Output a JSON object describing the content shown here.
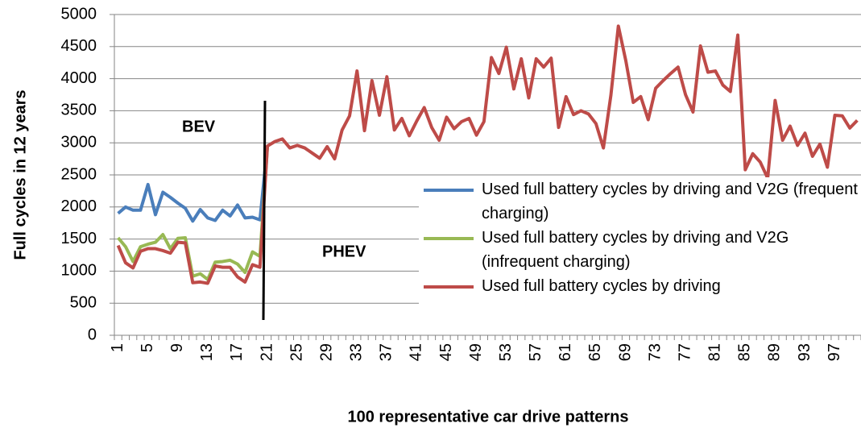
{
  "chart_data": {
    "type": "line",
    "ylabel": "Full cycles in 12 years",
    "xlabel": "100 representative car drive patterns",
    "annotations": [
      "BEV",
      "PHEV"
    ],
    "categories": [
      1,
      null,
      null,
      null,
      5,
      null,
      null,
      null,
      9,
      null,
      null,
      null,
      13,
      null,
      null,
      null,
      17,
      null,
      null,
      null,
      21,
      null,
      null,
      null,
      25,
      null,
      null,
      null,
      29,
      null,
      null,
      null,
      33,
      null,
      null,
      null,
      37,
      null,
      null,
      null,
      41,
      null,
      null,
      null,
      45,
      null,
      null,
      null,
      49,
      null,
      null,
      null,
      53,
      null,
      null,
      null,
      57,
      null,
      null,
      null,
      61,
      null,
      null,
      null,
      65,
      null,
      null,
      null,
      69,
      null,
      null,
      null,
      73,
      null,
      null,
      null,
      77,
      null,
      null,
      null,
      81,
      null,
      null,
      null,
      85,
      null,
      null,
      null,
      89,
      null,
      null,
      null,
      93,
      null,
      null,
      null,
      97,
      null,
      null,
      null
    ],
    "series": [
      {
        "name": "Used full battery cycles by driving and V2G (frequent charging)",
        "color": "#4a7ebb",
        "values": [
          1900,
          2000,
          1950,
          1950,
          2350,
          1880,
          2230,
          2150,
          2060,
          1980,
          1780,
          1960,
          1830,
          1790,
          1950,
          1860,
          2030,
          1830,
          1840,
          1800,
          2950,
          null,
          null,
          null,
          null,
          null,
          null,
          null,
          null,
          null,
          null,
          null,
          null,
          null,
          null,
          null,
          null,
          null,
          null,
          null,
          null,
          null,
          null,
          null,
          null,
          null,
          null,
          null,
          null,
          null,
          null,
          null,
          null,
          null,
          null,
          null,
          null,
          null,
          null,
          null,
          null,
          null,
          null,
          null,
          null,
          null,
          null,
          null,
          null,
          null,
          null,
          null,
          null,
          null,
          null,
          null,
          null,
          null,
          null,
          null,
          null,
          null,
          null,
          null,
          null,
          null,
          null,
          null,
          null,
          null,
          null,
          null,
          null,
          null,
          null,
          null,
          null,
          null,
          null,
          null
        ]
      },
      {
        "name": "Used full battery cycles by driving and V2G (infrequent charging)",
        "color": "#98b954",
        "values": [
          1520,
          1380,
          1150,
          1380,
          1420,
          1450,
          1570,
          1350,
          1510,
          1520,
          920,
          960,
          870,
          1140,
          1150,
          1170,
          1110,
          980,
          1300,
          1230,
          2950,
          null,
          null,
          null,
          null,
          null,
          null,
          null,
          null,
          null,
          null,
          null,
          null,
          null,
          null,
          null,
          null,
          null,
          null,
          null,
          null,
          null,
          null,
          null,
          null,
          null,
          null,
          null,
          null,
          null,
          null,
          null,
          null,
          null,
          null,
          null,
          null,
          null,
          null,
          null,
          null,
          null,
          null,
          null,
          null,
          null,
          null,
          null,
          null,
          null,
          null,
          null,
          null,
          null,
          null,
          null,
          null,
          null,
          null,
          null,
          null,
          null,
          null,
          null,
          null,
          null,
          null,
          null,
          null,
          null,
          null,
          null,
          null,
          null,
          null,
          null,
          null,
          null,
          null,
          null
        ]
      },
      {
        "name": "Used full battery cycles by driving",
        "color": "#be4b48",
        "values": [
          1400,
          1130,
          1050,
          1310,
          1350,
          1350,
          1320,
          1280,
          1450,
          1440,
          820,
          830,
          810,
          1080,
          1060,
          1060,
          910,
          830,
          1100,
          1060,
          2950,
          3020,
          3060,
          2920,
          2960,
          2920,
          2840,
          2760,
          2940,
          2750,
          3200,
          3420,
          4120,
          3190,
          3970,
          3430,
          4030,
          3200,
          3380,
          3110,
          3340,
          3550,
          3240,
          3040,
          3400,
          3220,
          3330,
          3380,
          3120,
          3330,
          4330,
          4080,
          4490,
          3840,
          4310,
          3700,
          4310,
          4180,
          4320,
          3240,
          3720,
          3440,
          3500,
          3450,
          3300,
          2920,
          3740,
          4820,
          4280,
          3630,
          3720,
          3360,
          3850,
          3970,
          4080,
          4180,
          3750,
          3480,
          4510,
          4100,
          4120,
          3900,
          3800,
          4680,
          2580,
          2830,
          2700,
          2450,
          3660,
          3040,
          3260,
          2960,
          3150,
          2790,
          2980,
          2620,
          3430,
          3420,
          3230,
          3350
        ]
      }
    ],
    "ylim": [
      0,
      5000
    ],
    "yticks": [
      0,
      500,
      1000,
      1500,
      2000,
      2500,
      3000,
      3500,
      4000,
      4500,
      5000
    ],
    "grid": true
  }
}
